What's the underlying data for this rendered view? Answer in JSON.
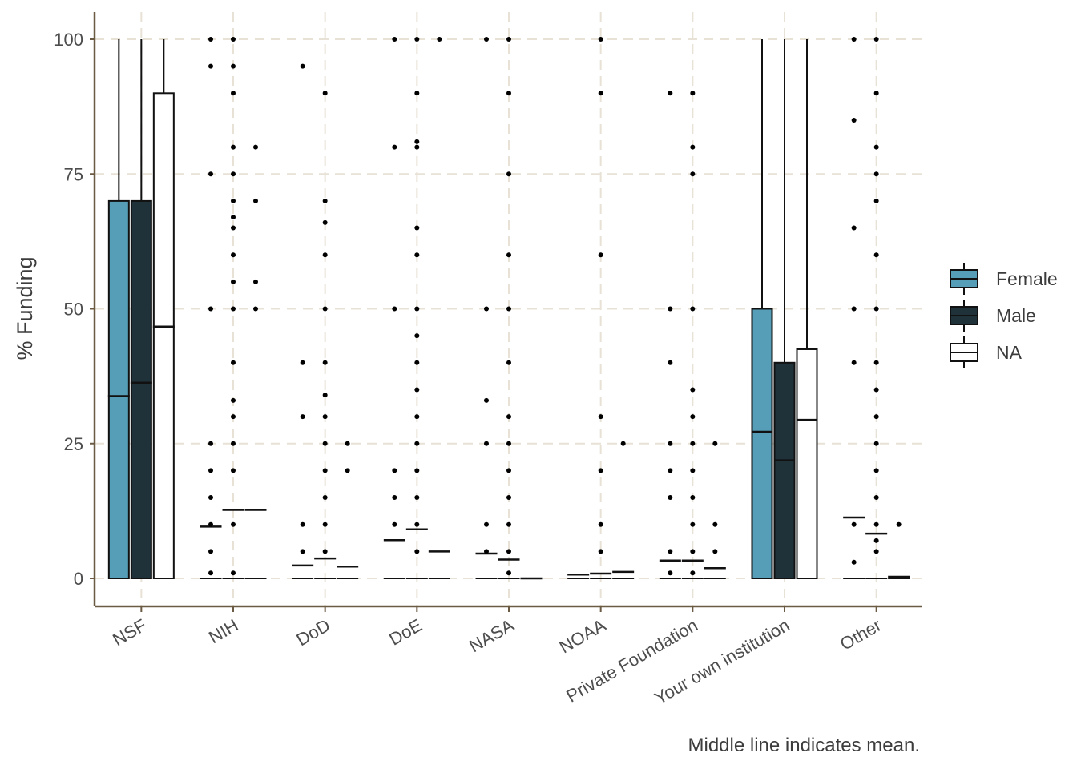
{
  "chart_data": {
    "type": "boxplot",
    "ylabel": "% Funding",
    "xlabel": "",
    "caption": "Middle line indicates mean.",
    "ylim": [
      -5,
      105
    ],
    "yticks": [
      0,
      25,
      50,
      75,
      100
    ],
    "grid": true,
    "legend_position": "right",
    "categories": [
      "NSF",
      "NIH",
      "DoD",
      "DoE",
      "NASA",
      "NOAA",
      "Private Foundation",
      "Your own institution",
      "Other"
    ],
    "series": [
      {
        "name": "Female",
        "color": "#569EB8",
        "boxes": [
          {
            "category": "NSF",
            "q1": 0,
            "q3": 70,
            "mean": 33.8,
            "whisker_low": 0,
            "whisker_high": 100,
            "outliers": []
          },
          {
            "category": "NIH",
            "q1": 0,
            "q3": 0,
            "mean": 9.6,
            "whisker_low": 0,
            "whisker_high": 0,
            "outliers": [
              1,
              5,
              10,
              15,
              20,
              25,
              50,
              75,
              95,
              100
            ]
          },
          {
            "category": "DoD",
            "q1": 0,
            "q3": 0,
            "mean": 2.4,
            "whisker_low": 0,
            "whisker_high": 0,
            "outliers": [
              5,
              10,
              30,
              40,
              95
            ]
          },
          {
            "category": "DoE",
            "q1": 0,
            "q3": 0,
            "mean": 7.1,
            "whisker_low": 0,
            "whisker_high": 0,
            "outliers": [
              10,
              15,
              20,
              50,
              80,
              100
            ]
          },
          {
            "category": "NASA",
            "q1": 0,
            "q3": 0,
            "mean": 4.6,
            "whisker_low": 0,
            "whisker_high": 0,
            "outliers": [
              5,
              10,
              25,
              33,
              50,
              100
            ]
          },
          {
            "category": "NOAA",
            "q1": 0,
            "q3": 0,
            "mean": 0.7,
            "whisker_low": 0,
            "whisker_high": 0,
            "outliers": []
          },
          {
            "category": "Private Foundation",
            "q1": 0,
            "q3": 0,
            "mean": 3.3,
            "whisker_low": 0,
            "whisker_high": 0,
            "outliers": [
              1,
              5,
              15,
              20,
              25,
              40,
              50,
              90
            ]
          },
          {
            "category": "Your own institution",
            "q1": 0,
            "q3": 50,
            "mean": 27.2,
            "whisker_low": 0,
            "whisker_high": 100,
            "outliers": []
          },
          {
            "category": "Other",
            "q1": 0,
            "q3": 0,
            "mean": 11.3,
            "whisker_low": 0,
            "whisker_high": 0,
            "outliers": [
              3,
              10,
              40,
              50,
              65,
              85,
              100
            ]
          }
        ]
      },
      {
        "name": "Male",
        "color": "#1F3139",
        "boxes": [
          {
            "category": "NSF",
            "q1": 0,
            "q3": 70,
            "mean": 36.3,
            "whisker_low": 0,
            "whisker_high": 100,
            "outliers": []
          },
          {
            "category": "NIH",
            "q1": 0,
            "q3": 0,
            "mean": 12.7,
            "whisker_low": 0,
            "whisker_high": 0,
            "outliers": [
              1,
              10,
              20,
              25,
              30,
              33,
              40,
              50,
              55,
              60,
              65,
              67,
              70,
              75,
              80,
              90,
              95,
              100
            ]
          },
          {
            "category": "DoD",
            "q1": 0,
            "q3": 0,
            "mean": 3.7,
            "whisker_low": 0,
            "whisker_high": 0,
            "outliers": [
              5,
              10,
              15,
              20,
              25,
              30,
              34,
              40,
              50,
              60,
              66,
              70,
              90
            ]
          },
          {
            "category": "DoE",
            "q1": 0,
            "q3": 0,
            "mean": 9.1,
            "whisker_low": 0,
            "whisker_high": 0,
            "outliers": [
              5,
              10,
              15,
              20,
              25,
              30,
              35,
              40,
              45,
              50,
              60,
              65,
              80,
              81,
              90,
              100
            ]
          },
          {
            "category": "NASA",
            "q1": 0,
            "q3": 0,
            "mean": 3.5,
            "whisker_low": 0,
            "whisker_high": 0,
            "outliers": [
              1,
              5,
              10,
              15,
              20,
              25,
              30,
              40,
              50,
              60,
              75,
              90,
              100
            ]
          },
          {
            "category": "NOAA",
            "q1": 0,
            "q3": 0,
            "mean": 0.9,
            "whisker_low": 0,
            "whisker_high": 0,
            "outliers": [
              5,
              10,
              20,
              30,
              60,
              90,
              100
            ]
          },
          {
            "category": "Private Foundation",
            "q1": 0,
            "q3": 0,
            "mean": 3.3,
            "whisker_low": 0,
            "whisker_high": 0,
            "outliers": [
              1,
              5,
              10,
              15,
              20,
              25,
              30,
              35,
              50,
              75,
              80,
              90
            ]
          },
          {
            "category": "Your own institution",
            "q1": 0,
            "q3": 40,
            "mean": 21.9,
            "whisker_low": 0,
            "whisker_high": 100,
            "outliers": []
          },
          {
            "category": "Other",
            "q1": 0,
            "q3": 0,
            "mean": 8.3,
            "whisker_low": 0,
            "whisker_high": 0,
            "outliers": [
              5,
              7,
              10,
              15,
              20,
              25,
              30,
              35,
              40,
              50,
              60,
              70,
              75,
              80,
              90,
              100
            ]
          }
        ]
      },
      {
        "name": "NA",
        "color": "#FFFFFF",
        "boxes": [
          {
            "category": "NSF",
            "q1": 0,
            "q3": 90,
            "mean": 46.7,
            "whisker_low": 0,
            "whisker_high": 100,
            "outliers": []
          },
          {
            "category": "NIH",
            "q1": 0,
            "q3": 0,
            "mean": 12.7,
            "whisker_low": 0,
            "whisker_high": 0,
            "outliers": [
              50,
              55,
              70,
              80
            ]
          },
          {
            "category": "DoD",
            "q1": 0,
            "q3": 0,
            "mean": 2.2,
            "whisker_low": 0,
            "whisker_high": 0,
            "outliers": [
              20,
              25
            ]
          },
          {
            "category": "DoE",
            "q1": 0,
            "q3": 0,
            "mean": 5,
            "whisker_low": 0,
            "whisker_high": 0,
            "outliers": [
              100
            ]
          },
          {
            "category": "NASA",
            "q1": 0,
            "q3": 0,
            "mean": 0,
            "whisker_low": 0,
            "whisker_high": 0,
            "outliers": []
          },
          {
            "category": "NOAA",
            "q1": 0,
            "q3": 0,
            "mean": 1.2,
            "whisker_low": 0,
            "whisker_high": 0,
            "outliers": [
              25
            ]
          },
          {
            "category": "Private Foundation",
            "q1": 0,
            "q3": 0,
            "mean": 1.9,
            "whisker_low": 0,
            "whisker_high": 0,
            "outliers": [
              5,
              10,
              25
            ]
          },
          {
            "category": "Your own institution",
            "q1": 0,
            "q3": 42.5,
            "mean": 29.4,
            "whisker_low": 0,
            "whisker_high": 100,
            "outliers": []
          },
          {
            "category": "Other",
            "q1": 0,
            "q3": 0,
            "mean": 0.3,
            "whisker_low": 0,
            "whisker_high": 0,
            "outliers": [
              10
            ]
          }
        ]
      }
    ],
    "colors": {
      "axis": "#6B5A44",
      "grid": "#E8E2D6",
      "outline": "#111111",
      "text": "#4d4d4d"
    }
  }
}
